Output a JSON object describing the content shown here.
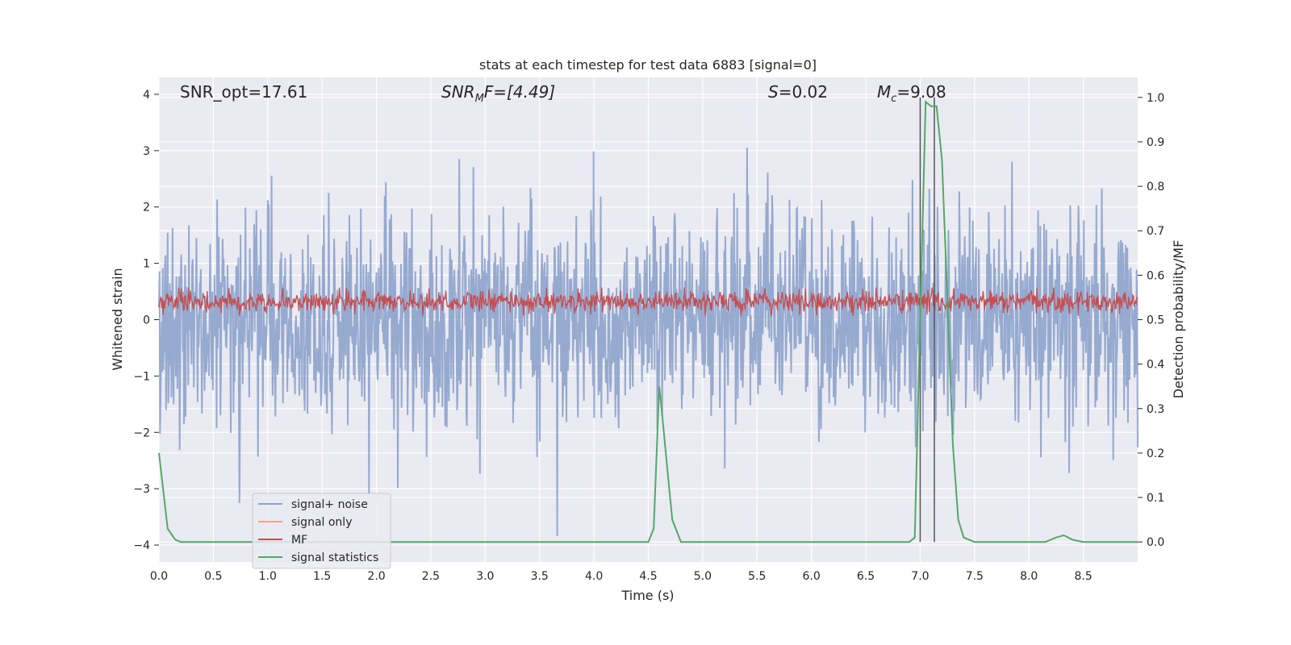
{
  "chart_data": {
    "type": "line",
    "title": "stats at each timestep for test data 6883 [signal=0]",
    "xlabel": "Time (s)",
    "ylabel_left": "Whitened strain",
    "ylabel_right": "Detection probability/MF",
    "xlim": [
      0.0,
      9.0
    ],
    "ylim_left": [
      -4.3,
      4.3
    ],
    "ylim_right": [
      -0.045,
      1.045
    ],
    "x_ticks": [
      "0.0",
      "0.5",
      "1.0",
      "1.5",
      "2.0",
      "2.5",
      "3.0",
      "3.5",
      "4.0",
      "4.5",
      "5.0",
      "5.5",
      "6.0",
      "6.5",
      "7.0",
      "7.5",
      "8.0",
      "8.5"
    ],
    "y_ticks_left": [
      "−4",
      "−3",
      "−2",
      "−1",
      "0",
      "1",
      "2",
      "3",
      "4"
    ],
    "y_ticks_right": [
      "0.0",
      "0.1",
      "0.2",
      "0.3",
      "0.4",
      "0.5",
      "0.6",
      "0.7",
      "0.8",
      "0.9",
      "1.0"
    ],
    "grid": true,
    "legend_position": "lower-left",
    "annotations": {
      "snr_opt": "SNR_opt=17.61",
      "snr_mf_base": "SNR",
      "snr_mf_sub": "M",
      "snr_mf_rest": "F=[4.49]",
      "s_italic": "S",
      "s_rest": "=0.02",
      "mc_base": "M",
      "mc_sub": "c",
      "mc_rest": "=9.08"
    },
    "vertical_markers": [
      7.0,
      7.13
    ],
    "series": [
      {
        "name": "signal+ noise",
        "color": "#8da2cb",
        "envelope": {
          "typical_abs": 1.8,
          "max": 4.0,
          "min": -4.0
        }
      },
      {
        "name": "signal only",
        "color": "#f0a48a",
        "values": []
      },
      {
        "name": "MF",
        "color": "#c44e52",
        "envelope": {
          "center": 0.32,
          "half_range": 0.25
        }
      },
      {
        "name": "signal statistics",
        "color": "#55a868",
        "x": [
          0.0,
          0.08,
          0.15,
          0.2,
          0.3,
          0.5,
          1.0,
          2.0,
          3.0,
          4.0,
          4.5,
          4.55,
          4.6,
          4.63,
          4.68,
          4.72,
          4.8,
          5.0,
          6.0,
          6.9,
          6.95,
          7.0,
          7.05,
          7.1,
          7.15,
          7.2,
          7.25,
          7.3,
          7.35,
          7.4,
          7.5,
          8.0,
          8.15,
          8.25,
          8.32,
          8.4,
          8.5,
          9.0
        ],
        "y": [
          0.2,
          0.03,
          0.005,
          0.0,
          0.0,
          0.0,
          0.0,
          0.0,
          0.0,
          0.0,
          0.0,
          0.03,
          0.35,
          0.28,
          0.15,
          0.05,
          0.0,
          0.0,
          0.0,
          0.0,
          0.01,
          0.5,
          0.99,
          0.98,
          0.98,
          0.86,
          0.55,
          0.22,
          0.05,
          0.01,
          0.0,
          0.0,
          0.0,
          0.01,
          0.015,
          0.005,
          0.0,
          0.0
        ]
      }
    ]
  }
}
